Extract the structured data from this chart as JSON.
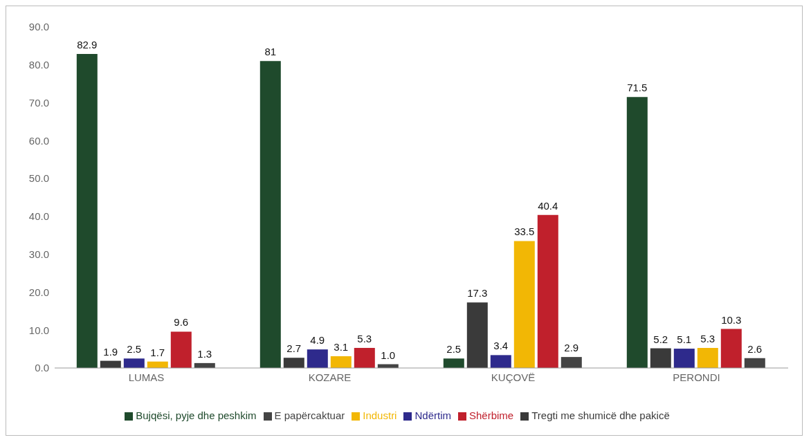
{
  "chart_data": {
    "type": "bar",
    "categories": [
      "LUMAS",
      "KOZARE",
      "KUÇOVË",
      "PERONDI"
    ],
    "series": [
      {
        "name": "Bujqësi, pyje dhe peshkim",
        "color": "#1f4a2c",
        "values": [
          82.9,
          81,
          2.5,
          71.5
        ],
        "value_labels": [
          "82.9",
          "81",
          "2.5",
          "71.5"
        ]
      },
      {
        "name": "Tregti me shumicë dhe pakicë",
        "color": "#3a3a3a",
        "values": [
          1.9,
          2.7,
          17.3,
          5.2
        ],
        "value_labels": [
          "1.9",
          "2.7",
          "17.3",
          "5.2"
        ]
      },
      {
        "name": "Ndërtim",
        "color": "#2e2a8c",
        "values": [
          2.5,
          4.9,
          3.4,
          5.1
        ],
        "value_labels": [
          "2.5",
          "4.9",
          "3.4",
          "5.1"
        ]
      },
      {
        "name": "Industri",
        "color": "#f2b705",
        "values": [
          1.7,
          3.1,
          33.5,
          5.3
        ],
        "value_labels": [
          "1.7",
          "3.1",
          "33.5",
          "5.3"
        ]
      },
      {
        "name": "Shërbime",
        "color": "#c0202c",
        "values": [
          9.6,
          5.3,
          40.4,
          10.3
        ],
        "value_labels": [
          "9.6",
          "5.3",
          "40.4",
          "10.3"
        ]
      },
      {
        "name": "E papërcaktuar",
        "color": "#444444",
        "values": [
          1.3,
          1.0,
          2.9,
          2.6
        ],
        "value_labels": [
          "1.3",
          "1.0",
          "2.9",
          "2.6"
        ]
      }
    ],
    "ylim": [
      0,
      90
    ],
    "yticks": [
      {
        "value": 0,
        "label": "0.0"
      },
      {
        "value": 10,
        "label": "10.0"
      },
      {
        "value": 20,
        "label": "20.0"
      },
      {
        "value": 30,
        "label": "30.0"
      },
      {
        "value": 40,
        "label": "40.0"
      },
      {
        "value": 50,
        "label": "50.0"
      },
      {
        "value": 60,
        "label": "60.0"
      },
      {
        "value": 70,
        "label": "70.0"
      },
      {
        "value": 80,
        "label": "80.0"
      },
      {
        "value": 90,
        "label": "90.0"
      }
    ],
    "grid": false,
    "legend": "bottom"
  }
}
